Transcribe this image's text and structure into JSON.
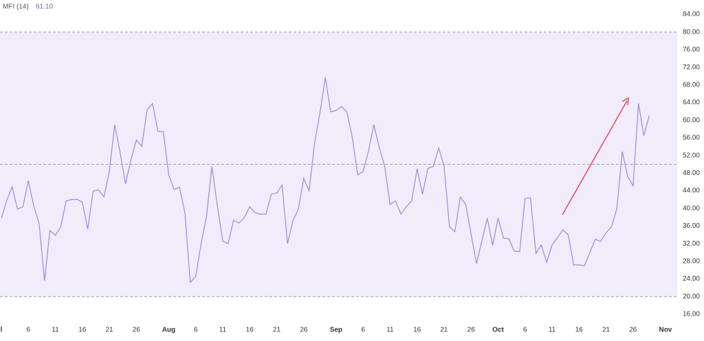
{
  "chart_data": {
    "type": "line",
    "series": [
      {
        "name": "MFI (14)",
        "color": "#9b87de",
        "values": [
          37.8,
          41.8,
          44.9,
          39.8,
          40.4,
          46.3,
          40.6,
          36.5,
          23.6,
          35.0,
          33.9,
          35.8,
          41.7,
          42.0,
          42.1,
          41.4,
          35.3,
          43.9,
          44.2,
          42.6,
          48.4,
          59.0,
          52.7,
          45.6,
          51.0,
          55.5,
          54.1,
          62.4,
          63.8,
          57.5,
          57.4,
          47.6,
          44.3,
          44.8,
          38.9,
          23.2,
          24.6,
          32.0,
          38.2,
          49.5,
          40.6,
          32.6,
          32.0,
          37.3,
          36.7,
          37.9,
          40.4,
          39.0,
          38.7,
          38.7,
          43.2,
          43.5,
          45.3,
          32.0,
          37.2,
          39.8,
          46.8,
          44.0,
          54.7,
          61.6,
          69.7,
          61.9,
          62.2,
          63.1,
          61.9,
          56.1,
          47.6,
          48.4,
          53.0,
          59.0,
          53.8,
          49.5,
          40.9,
          41.7,
          38.7,
          40.4,
          41.7,
          49.0,
          43.2,
          49.1,
          49.5,
          53.7,
          49.6,
          35.8,
          34.7,
          42.6,
          40.9,
          34.2,
          27.5,
          32.6,
          37.8,
          31.6,
          37.8,
          33.3,
          33.1,
          30.3,
          30.2,
          42.3,
          42.4,
          29.8,
          31.7,
          27.8,
          31.7,
          33.4,
          35.1,
          34.0,
          27.2,
          27.2,
          27.0,
          30.0,
          33.0,
          32.5,
          34.5,
          35.8,
          40.0,
          52.9,
          47.3,
          45.1,
          63.8,
          56.5,
          61.1
        ],
        "value_labels": {
          "120": "61.10"
        }
      }
    ],
    "x": [
      0,
      1,
      2,
      3,
      4,
      5,
      6,
      7,
      8,
      9,
      10,
      11,
      12,
      13,
      14,
      15,
      16,
      17,
      18,
      19,
      20,
      21,
      22,
      23,
      24,
      25,
      26,
      27,
      28,
      29,
      30,
      31,
      32,
      33,
      34,
      35,
      36,
      37,
      38,
      39,
      40,
      41,
      42,
      43,
      44,
      45,
      46,
      47,
      48,
      49,
      50,
      51,
      52,
      53,
      54,
      55,
      56,
      57,
      58,
      59,
      60,
      61,
      62,
      63,
      64,
      65,
      66,
      67,
      68,
      69,
      70,
      71,
      72,
      73,
      74,
      75,
      76,
      77,
      78,
      79,
      80,
      81,
      82,
      83,
      84,
      85,
      86,
      87,
      88,
      89,
      90,
      91,
      92,
      93,
      94,
      95,
      96,
      97,
      98,
      99,
      100,
      101,
      102,
      103,
      104,
      105,
      106,
      107,
      108,
      109,
      110,
      111,
      112,
      113,
      114,
      115,
      116,
      117,
      118,
      119,
      120
    ],
    "xlim": [
      -0.25,
      123.9
    ],
    "xticks": [
      {
        "value": 0,
        "label": "l"
      },
      {
        "value": 5,
        "label": "6"
      },
      {
        "value": 10,
        "label": "11"
      },
      {
        "value": 15,
        "label": "16"
      },
      {
        "value": 20,
        "label": "21"
      },
      {
        "value": 25,
        "label": "26"
      },
      {
        "value": 31,
        "label": "Aug"
      },
      {
        "value": 36,
        "label": "6"
      },
      {
        "value": 41,
        "label": "11"
      },
      {
        "value": 46,
        "label": "16"
      },
      {
        "value": 51,
        "label": "21"
      },
      {
        "value": 56,
        "label": "26"
      },
      {
        "value": 62,
        "label": "Sep"
      },
      {
        "value": 67,
        "label": "6"
      },
      {
        "value": 72,
        "label": "11"
      },
      {
        "value": 77,
        "label": "16"
      },
      {
        "value": 82,
        "label": "21"
      },
      {
        "value": 87,
        "label": "26"
      },
      {
        "value": 92,
        "label": "Oct"
      },
      {
        "value": 97,
        "label": "6"
      },
      {
        "value": 102,
        "label": "11"
      },
      {
        "value": 107,
        "label": "16"
      },
      {
        "value": 112,
        "label": "21"
      },
      {
        "value": 117,
        "label": "26"
      },
      {
        "value": 123,
        "label": "Nov"
      }
    ],
    "ylim": [
      14.13,
      87.27
    ],
    "yticks": [
      {
        "value": 84,
        "label": "84.00"
      },
      {
        "value": 80,
        "label": "80.00"
      },
      {
        "value": 76,
        "label": "76.00"
      },
      {
        "value": 72,
        "label": "72.00"
      },
      {
        "value": 68,
        "label": "68.00"
      },
      {
        "value": 64,
        "label": "64.00"
      },
      {
        "value": 60,
        "label": "60.00"
      },
      {
        "value": 56,
        "label": "56.00"
      },
      {
        "value": 52,
        "label": "52.00"
      },
      {
        "value": 48,
        "label": "48.00"
      },
      {
        "value": 44,
        "label": "44.00"
      },
      {
        "value": 40,
        "label": "40.00"
      },
      {
        "value": 36,
        "label": "36.00"
      },
      {
        "value": 32,
        "label": "32.00"
      },
      {
        "value": 28,
        "label": "28.00"
      },
      {
        "value": 24,
        "label": "24.00"
      },
      {
        "value": 20,
        "label": "20.00"
      },
      {
        "value": 16,
        "label": "16.00"
      }
    ],
    "bands": [
      80,
      50,
      20
    ],
    "band_fill": "#f1ecf9"
  }
}
